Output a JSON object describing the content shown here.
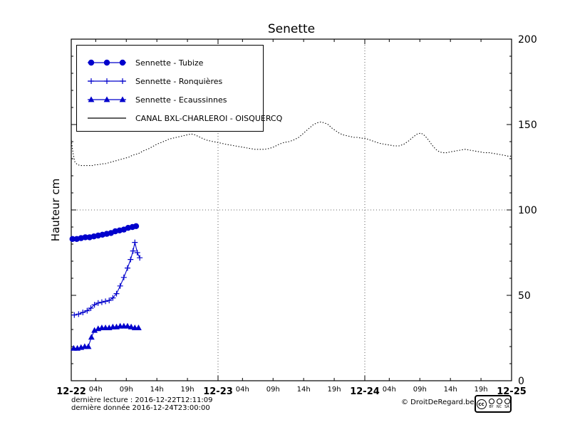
{
  "title": "Senette",
  "ylabel": "Hauteur cm",
  "footer": {
    "last_read": "dernière lecture : 2016-12-22T12:11:09",
    "last_data": "dernière donnée  2016-12-24T23:00:00",
    "copyright": "© DroitDeRegard.be",
    "license": {
      "cc": "cc",
      "by": "BY",
      "nc": "NC",
      "sa": "SA"
    }
  },
  "chart_data": {
    "type": "line",
    "title": "Senette",
    "ylabel": "Hauteur cm",
    "x_unit": "hours since 2016-12-22 00:00",
    "xlim": [
      0,
      72
    ],
    "ylim": [
      0,
      200
    ],
    "y_ticks": [
      0,
      50,
      100,
      150,
      200
    ],
    "x_major_ticks": [
      {
        "hour": 0,
        "label": "12-22"
      },
      {
        "hour": 24,
        "label": "12-23"
      },
      {
        "hour": 48,
        "label": "12-24"
      },
      {
        "hour": 72,
        "label": "12-25"
      }
    ],
    "x_minor_ticks": [
      {
        "hour": 4,
        "label": "04h"
      },
      {
        "hour": 9,
        "label": "09h"
      },
      {
        "hour": 14,
        "label": "14h"
      },
      {
        "hour": 19,
        "label": "19h"
      },
      {
        "hour": 28,
        "label": "04h"
      },
      {
        "hour": 33,
        "label": "09h"
      },
      {
        "hour": 38,
        "label": "14h"
      },
      {
        "hour": 43,
        "label": "19h"
      },
      {
        "hour": 52,
        "label": "04h"
      },
      {
        "hour": 57,
        "label": "09h"
      },
      {
        "hour": 62,
        "label": "14h"
      },
      {
        "hour": 67,
        "label": "19h"
      }
    ],
    "grid": {
      "vertical_hours": [
        24,
        48
      ],
      "horizontal_values": [
        100
      ]
    },
    "series": [
      {
        "id": "tubize",
        "name": "Sennette - Tubize",
        "color": "#0000cc",
        "marker": "circle",
        "line": "solid",
        "points": [
          [
            0.2,
            83
          ],
          [
            0.9,
            83
          ],
          [
            1.6,
            83.5
          ],
          [
            2.3,
            84
          ],
          [
            3,
            84
          ],
          [
            3.7,
            84.5
          ],
          [
            4.4,
            85
          ],
          [
            5.1,
            85.5
          ],
          [
            5.8,
            86
          ],
          [
            6.5,
            86.5
          ],
          [
            7.2,
            87.5
          ],
          [
            7.9,
            88
          ],
          [
            8.6,
            88.5
          ],
          [
            9.3,
            89.5
          ],
          [
            10,
            90
          ],
          [
            10.6,
            90.5
          ]
        ]
      },
      {
        "id": "ronquieres",
        "name": "Sennette - Ronquières",
        "color": "#0000cc",
        "marker": "plus",
        "line": "solid",
        "points": [
          [
            0.5,
            38.5
          ],
          [
            1.2,
            39
          ],
          [
            1.9,
            40
          ],
          [
            2.6,
            41
          ],
          [
            3.2,
            42.5
          ],
          [
            3.8,
            44.5
          ],
          [
            4.4,
            45.5
          ],
          [
            5,
            46
          ],
          [
            5.6,
            46.5
          ],
          [
            6.2,
            47
          ],
          [
            6.8,
            48.5
          ],
          [
            7.4,
            51
          ],
          [
            8,
            55.5
          ],
          [
            8.6,
            60.5
          ],
          [
            9.2,
            66
          ],
          [
            9.7,
            71
          ],
          [
            10.1,
            76
          ],
          [
            10.4,
            81
          ],
          [
            10.8,
            75
          ],
          [
            11.2,
            72
          ]
        ]
      },
      {
        "id": "ecaussinnes",
        "name": "Sennette - Ecaussinnes",
        "color": "#0000cc",
        "marker": "triangle",
        "line": "solid",
        "points": [
          [
            0.4,
            19
          ],
          [
            1,
            19
          ],
          [
            1.6,
            19.5
          ],
          [
            2.2,
            20
          ],
          [
            2.8,
            20
          ],
          [
            3.3,
            25.5
          ],
          [
            3.8,
            29.5
          ],
          [
            4.4,
            30.5
          ],
          [
            5,
            31
          ],
          [
            5.6,
            31
          ],
          [
            6.2,
            31
          ],
          [
            6.8,
            31.5
          ],
          [
            7.4,
            31.5
          ],
          [
            8,
            32
          ],
          [
            8.6,
            32
          ],
          [
            9.2,
            32
          ],
          [
            9.8,
            31.5
          ],
          [
            10.4,
            31
          ],
          [
            11,
            31
          ]
        ]
      },
      {
        "id": "canal-bxl-charleroi-oisquercq",
        "name": "CANAL BXL-CHARLEROI  - OISQUERCQ",
        "color": "#000000",
        "marker": "none",
        "line": "dotted",
        "points": [
          [
            0,
            141
          ],
          [
            0.3,
            133
          ],
          [
            0.6,
            128
          ],
          [
            1,
            126.5
          ],
          [
            1.5,
            126
          ],
          [
            2,
            126
          ],
          [
            2.5,
            126
          ],
          [
            3,
            126
          ],
          [
            3.5,
            126
          ],
          [
            4,
            126.5
          ],
          [
            4.5,
            126.5
          ],
          [
            5,
            127
          ],
          [
            5.5,
            127
          ],
          [
            6,
            127.5
          ],
          [
            6.5,
            128
          ],
          [
            7,
            128.5
          ],
          [
            7.5,
            129
          ],
          [
            8,
            129.5
          ],
          [
            8.5,
            130
          ],
          [
            9,
            130.5
          ],
          [
            9.5,
            131
          ],
          [
            10,
            132
          ],
          [
            10.5,
            132.5
          ],
          [
            11,
            133
          ],
          [
            11.5,
            134
          ],
          [
            12,
            135
          ],
          [
            12.5,
            135.5
          ],
          [
            13,
            136.5
          ],
          [
            13.5,
            137.5
          ],
          [
            14,
            138.5
          ],
          [
            14.7,
            139.5
          ],
          [
            15.4,
            140.5
          ],
          [
            16,
            141.5
          ],
          [
            16.6,
            142
          ],
          [
            17.2,
            142.5
          ],
          [
            17.8,
            143
          ],
          [
            18.4,
            143.5
          ],
          [
            19,
            144
          ],
          [
            19.6,
            144.5
          ],
          [
            20.2,
            144
          ],
          [
            20.8,
            143
          ],
          [
            21.4,
            142
          ],
          [
            22,
            141
          ],
          [
            22.6,
            140.5
          ],
          [
            23.2,
            140
          ],
          [
            24,
            139.5
          ],
          [
            24.6,
            139
          ],
          [
            25.2,
            138.5
          ],
          [
            26,
            138
          ],
          [
            26.8,
            137.5
          ],
          [
            27.6,
            137
          ],
          [
            28.4,
            136.5
          ],
          [
            29.2,
            136
          ],
          [
            30,
            135.5
          ],
          [
            30.8,
            135.5
          ],
          [
            31.6,
            135.5
          ],
          [
            32.4,
            136
          ],
          [
            33.2,
            137
          ],
          [
            34,
            138.5
          ],
          [
            34.8,
            139.5
          ],
          [
            35.6,
            140
          ],
          [
            36.4,
            141
          ],
          [
            37.2,
            142.5
          ],
          [
            38,
            145
          ],
          [
            38.8,
            147.5
          ],
          [
            39.6,
            150
          ],
          [
            40.2,
            151
          ],
          [
            40.8,
            151.5
          ],
          [
            41.4,
            151
          ],
          [
            42,
            150
          ],
          [
            42.6,
            148
          ],
          [
            43.2,
            146.5
          ],
          [
            43.8,
            145
          ],
          [
            44.4,
            144
          ],
          [
            45,
            143.5
          ],
          [
            45.6,
            143
          ],
          [
            46.2,
            142.5
          ],
          [
            46.8,
            142.5
          ],
          [
            47.4,
            142
          ],
          [
            48,
            142
          ],
          [
            48.8,
            141
          ],
          [
            49.6,
            140
          ],
          [
            50.4,
            139
          ],
          [
            51.2,
            138.5
          ],
          [
            52,
            138
          ],
          [
            52.8,
            137.5
          ],
          [
            53.6,
            137.5
          ],
          [
            54.4,
            138.5
          ],
          [
            55.2,
            140.5
          ],
          [
            56,
            143
          ],
          [
            56.6,
            144.5
          ],
          [
            57.2,
            145
          ],
          [
            57.8,
            143.5
          ],
          [
            58.4,
            141
          ],
          [
            59,
            138
          ],
          [
            59.6,
            135.5
          ],
          [
            60.2,
            134
          ],
          [
            60.8,
            133.5
          ],
          [
            61.4,
            133.5
          ],
          [
            62,
            134
          ],
          [
            62.8,
            134.5
          ],
          [
            63.6,
            135
          ],
          [
            64.4,
            135.5
          ],
          [
            65.2,
            135
          ],
          [
            66,
            134.5
          ],
          [
            66.8,
            134
          ],
          [
            67.6,
            133.5
          ],
          [
            68.4,
            133.5
          ],
          [
            69.2,
            133
          ],
          [
            70,
            132.5
          ],
          [
            70.8,
            132
          ],
          [
            71.4,
            131.5
          ],
          [
            72,
            131.5
          ]
        ]
      }
    ]
  }
}
